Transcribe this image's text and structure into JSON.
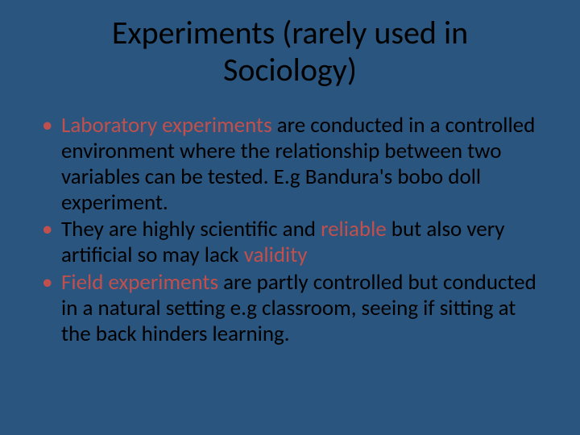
{
  "slide": {
    "background_color": "#2a557f",
    "text_color": "#000000",
    "accent_color": "#c0504d",
    "title_fontsize": 40,
    "body_fontsize": 27,
    "font_family": "Calibri",
    "title": "Experiments (rarely used in Sociology)",
    "bullets": [
      {
        "segments": [
          {
            "text": "Laboratory experiments ",
            "red": true
          },
          {
            "text": "are conducted in a controlled environment where the relationship between two variables can be tested. E.g Bandura's bobo doll experiment.",
            "red": false
          }
        ]
      },
      {
        "segments": [
          {
            "text": "They are highly scientific and ",
            "red": false
          },
          {
            "text": "reliable",
            "red": true
          },
          {
            "text": " but also very artificial so may lack ",
            "red": false
          },
          {
            "text": "validity",
            "red": true
          }
        ]
      },
      {
        "segments": [
          {
            "text": "Field experiments ",
            "red": true
          },
          {
            "text": "are partly controlled but conducted in a natural setting e.g classroom, seeing if sitting at the back hinders learning.",
            "red": false
          }
        ]
      }
    ]
  }
}
